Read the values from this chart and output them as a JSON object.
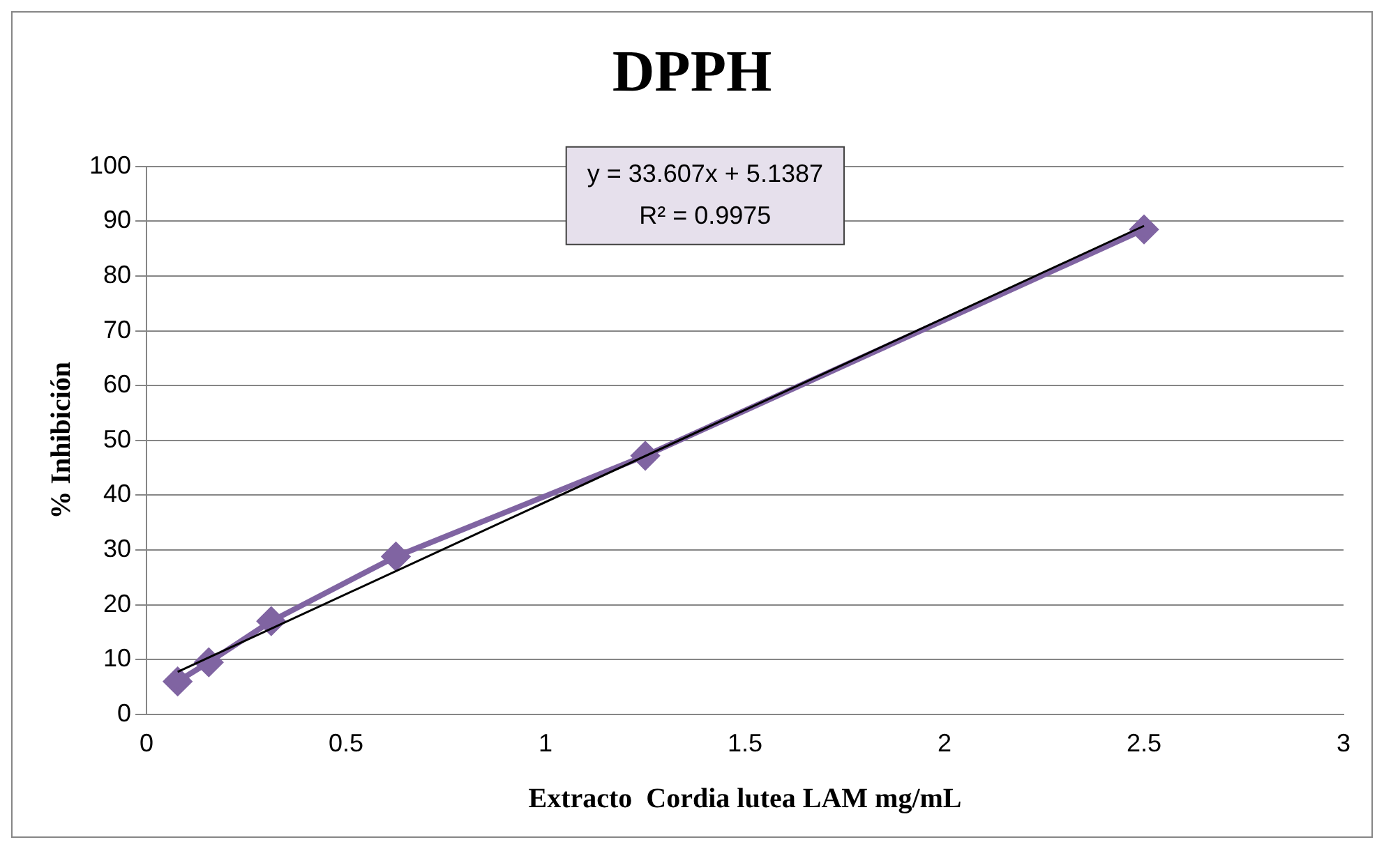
{
  "chart_data": {
    "type": "line",
    "title": "DPPH",
    "xlabel": "Extracto  Cordia lutea LAM mg/mL",
    "ylabel": "% Inhibición",
    "xlim": [
      0,
      3
    ],
    "xticks": [
      0,
      0.5,
      1,
      1.5,
      2,
      2.5,
      3
    ],
    "ylim": [
      0,
      100
    ],
    "yticks": [
      0,
      10,
      20,
      30,
      40,
      50,
      60,
      70,
      80,
      90,
      100
    ],
    "grid": "y",
    "marker": "diamond",
    "line_style": "solid",
    "annotations": [
      "y = 33.607x + 5.1387",
      "R² = 0.9975"
    ],
    "series": [
      {
        "color": "#8064a2",
        "x": [
          0.078,
          0.156,
          0.3125,
          0.625,
          1.25,
          2.5
        ],
        "values": [
          6,
          9.5,
          17,
          28.8,
          47.2,
          88.5
        ]
      },
      {
        "type": "line",
        "marker": "none",
        "color": "#000000",
        "x": [
          0.078,
          2.5
        ],
        "values": [
          7.76,
          89.16
        ]
      }
    ]
  }
}
